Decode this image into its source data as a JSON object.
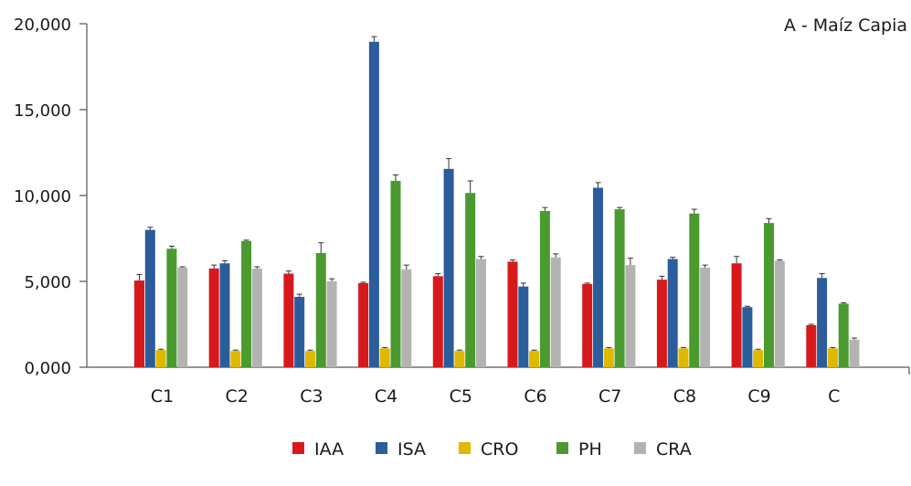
{
  "chart_data": {
    "type": "bar",
    "title": "A - Maíz Capia",
    "xlabel": "",
    "ylabel": "",
    "ylim": [
      0,
      20000
    ],
    "y_ticks": [
      0,
      5000,
      10000,
      15000,
      20000
    ],
    "y_tick_labels": [
      "0,000",
      "5,000",
      "10,000",
      "15,000",
      "20,000"
    ],
    "categories": [
      "C1",
      "C2",
      "C3",
      "C4",
      "C5",
      "C6",
      "C7",
      "C8",
      "C9",
      "C"
    ],
    "legend_position": "bottom",
    "grid": false,
    "series": [
      {
        "name": "IAA",
        "color": "#d7191c",
        "values": [
          5050,
          5750,
          5450,
          4900,
          5300,
          6150,
          4850,
          5100,
          6050,
          2450
        ],
        "errors": [
          350,
          200,
          150,
          50,
          150,
          100,
          50,
          200,
          400,
          50
        ]
      },
      {
        "name": "ISA",
        "color": "#2b5c9b",
        "values": [
          8000,
          6050,
          4100,
          18950,
          11550,
          4700,
          10450,
          6300,
          3500,
          5200
        ],
        "errors": [
          150,
          150,
          150,
          300,
          600,
          200,
          300,
          100,
          50,
          250
        ]
      },
      {
        "name": "CRO",
        "color": "#e0b800",
        "values": [
          1000,
          950,
          950,
          1100,
          950,
          950,
          1100,
          1100,
          1000,
          1100
        ],
        "errors": [
          50,
          50,
          50,
          50,
          50,
          50,
          50,
          50,
          50,
          50
        ]
      },
      {
        "name": "PH",
        "color": "#4a9a2f",
        "values": [
          6900,
          7350,
          6650,
          10850,
          10150,
          9100,
          9200,
          8950,
          8400,
          3700
        ],
        "errors": [
          150,
          50,
          600,
          350,
          700,
          200,
          100,
          250,
          250,
          50
        ]
      },
      {
        "name": "CRA",
        "color": "#b3b3b3",
        "values": [
          5800,
          5750,
          5000,
          5700,
          6300,
          6400,
          5950,
          5800,
          6200,
          1600
        ],
        "errors": [
          50,
          100,
          150,
          250,
          150,
          200,
          400,
          150,
          50,
          100
        ]
      }
    ]
  }
}
